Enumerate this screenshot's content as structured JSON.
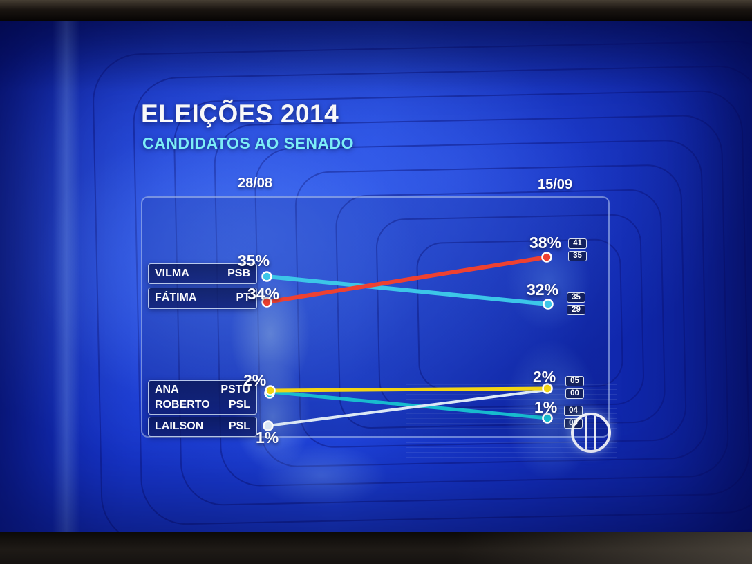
{
  "header": {
    "title": "ELEIÇÕES 2014",
    "subtitle": "CANDIDATOS AO SENADO"
  },
  "dates": {
    "left": "28/08",
    "right": "15/09"
  },
  "legend": {
    "rows": [
      {
        "name": "VILMA",
        "party": "PSB"
      },
      {
        "name": "FÁTIMA",
        "party": "PT"
      },
      {
        "name": "ANA",
        "party": "PSTU"
      },
      {
        "name": "ROBERTO",
        "party": "PSL"
      },
      {
        "name": "LAILSON",
        "party": "PSL"
      }
    ]
  },
  "points": {
    "left": [
      {
        "label": "35%"
      },
      {
        "label": "34%"
      },
      {
        "label": "2%"
      },
      {
        "label": "1%"
      }
    ],
    "right": [
      {
        "label": "38%",
        "box_top": "41",
        "box_bottom": "35"
      },
      {
        "label": "32%",
        "box_top": "35",
        "box_bottom": "29"
      },
      {
        "label": "2%",
        "box_top": "05",
        "box_bottom": "00"
      },
      {
        "label": "1%",
        "box_top": "04",
        "box_bottom": "00"
      }
    ]
  },
  "chart_data": {
    "type": "line",
    "title": "ELEIÇÕES 2014 — CANDIDATOS AO SENADO",
    "x": [
      "28/08",
      "15/09"
    ],
    "series": [
      {
        "name": "Fátima (PT)",
        "values": [
          34,
          38
        ],
        "color": "#ee4131",
        "right_range": [
          41,
          35
        ]
      },
      {
        "name": "Vilma (PSB)",
        "values": [
          35,
          32
        ],
        "color": "#3cc6e8",
        "right_range": [
          35,
          29
        ]
      },
      {
        "name": "Ana (PSTU)",
        "values": [
          2,
          2
        ],
        "color": "#f3d514",
        "right_range": [
          5,
          0
        ]
      },
      {
        "name": "Roberto (PSL)",
        "values": [
          2,
          1
        ],
        "color": "#18bccf",
        "right_range": [
          4,
          0
        ]
      },
      {
        "name": "Lailson (PSL)",
        "values": [
          1,
          2
        ],
        "color": "#dde9f6"
      }
    ],
    "ylim": [
      0,
      45
    ],
    "grid": false,
    "legend_position": "left"
  }
}
